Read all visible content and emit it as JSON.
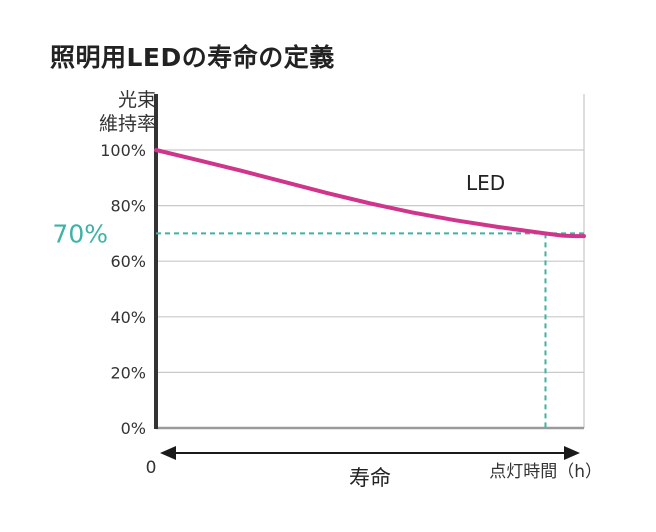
{
  "chart_data": {
    "type": "line",
    "title": "照明用LEDの寿命の定義",
    "ylabel": [
      "光束",
      "維持率"
    ],
    "yticks": [
      "100%",
      "80%",
      "70%",
      "60%",
      "40%",
      "20%",
      "0%"
    ],
    "ylim": [
      0,
      100
    ],
    "xlim": [
      0,
      1
    ],
    "x_origin_label": "0",
    "xlabel": "寿命",
    "x_unit_label": "点灯時間（h）",
    "grid": true,
    "series": [
      {
        "name": "LED",
        "color": "#d0358c",
        "x": [
          0,
          0.1,
          0.2,
          0.3,
          0.4,
          0.5,
          0.6,
          0.7,
          0.8,
          0.9,
          0.92,
          0.95,
          0.98,
          1.0
        ],
        "y": [
          100,
          96.3,
          92.5,
          88.5,
          84.5,
          80.8,
          77.5,
          74.7,
          72.3,
          70.2,
          69.8,
          69.2,
          69.0,
          69.0
        ]
      }
    ],
    "threshold": {
      "y": 70,
      "label": "70%",
      "x_at_threshold": 0.91,
      "color": "#3fb2a6"
    }
  }
}
